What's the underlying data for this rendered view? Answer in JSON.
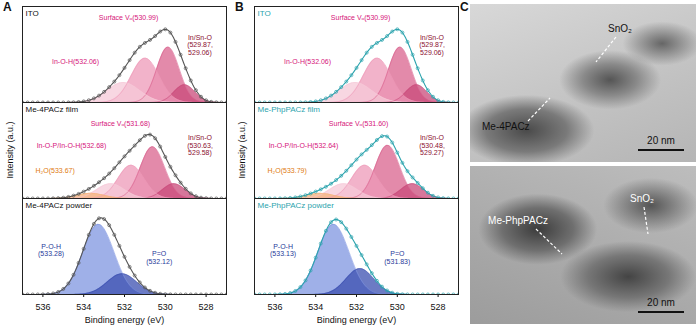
{
  "chart_data": [
    {
      "type": "area",
      "panel": "A",
      "x_label": "Binding energy (eV)",
      "y_label": "Intensity (a.u.)",
      "xlim": [
        537,
        527
      ],
      "xticks": [
        536,
        534,
        532,
        530,
        528
      ],
      "ylim": [
        0,
        1.3
      ],
      "tick_labels": "x",
      "spectra": [
        {
          "name": "ITO",
          "color": "#555555",
          "marker": "circle",
          "peaks": [
            {
              "center": 529.87,
              "height": 0.75,
              "fwhm": 1.3,
              "color": "#d9638e"
            },
            {
              "center": 529.06,
              "height": 0.24,
              "fwhm": 1.2,
              "color": "#c94a7a"
            },
            {
              "center": 530.99,
              "height": 0.6,
              "fwhm": 1.6,
              "color": "#ee9ab8"
            },
            {
              "center": 532.06,
              "height": 0.27,
              "fwhm": 1.9,
              "color": "#f6c9d8"
            }
          ],
          "annotations": [
            {
              "text": "Surface Vₒ(530.99)",
              "x": 531.8,
              "y": 1.15,
              "color": "#d6157a"
            },
            {
              "text": "In-O-H(532.06)",
              "x": 534.4,
              "y": 0.55,
              "color": "#d6157a"
            },
            {
              "text": "In/Sn-O\n(529.87,\n529.06)",
              "x": 528.3,
              "y": 0.78,
              "color": "#8b1030"
            }
          ]
        },
        {
          "name": "Me-4PACz film",
          "color": "#555555",
          "marker": "circle",
          "peaks": [
            {
              "center": 530.63,
              "height": 0.7,
              "fwhm": 1.4,
              "color": "#d9638e"
            },
            {
              "center": 529.58,
              "height": 0.2,
              "fwhm": 1.3,
              "color": "#c94a7a"
            },
            {
              "center": 531.68,
              "height": 0.45,
              "fwhm": 1.5,
              "color": "#ee9ab8"
            },
            {
              "center": 532.68,
              "height": 0.2,
              "fwhm": 1.6,
              "color": "#f6c9d8"
            },
            {
              "center": 533.67,
              "height": 0.07,
              "fwhm": 1.6,
              "color": "#f5b27a"
            }
          ],
          "annotations": [
            {
              "text": "Surface Vₒ(531.68)",
              "x": 532.2,
              "y": 1.02,
              "color": "#d6157a"
            },
            {
              "text": "In-O-P/In-O-H(532.68)",
              "x": 534.6,
              "y": 0.72,
              "color": "#d6157a"
            },
            {
              "text": "H₂O(533.67)",
              "x": 535.4,
              "y": 0.38,
              "color": "#e07a10"
            },
            {
              "text": "In/Sn-O\n(530.63,\n529.58)",
              "x": 528.3,
              "y": 0.72,
              "color": "#8b1030"
            }
          ]
        },
        {
          "name": "Me-4PACz powder",
          "color": "#555555",
          "marker": "circle",
          "peaks": [
            {
              "center": 533.28,
              "height": 0.95,
              "fwhm": 1.8,
              "color": "#7f95e0"
            },
            {
              "center": 532.12,
              "height": 0.28,
              "fwhm": 1.7,
              "color": "#3b4fb0"
            }
          ],
          "annotations": [
            {
              "text": "P-O-H\n(533.28)",
              "x": 535.6,
              "y": 0.6,
              "color": "#1f3a9a"
            },
            {
              "text": "P=O\n(532.12)",
              "x": 530.3,
              "y": 0.5,
              "color": "#1f3a9a"
            }
          ]
        }
      ]
    },
    {
      "type": "area",
      "panel": "B",
      "x_label": "Binding energy (eV)",
      "y_label": "Intensity (a.u.)",
      "xlim": [
        537,
        527
      ],
      "xticks": [
        536,
        534,
        532,
        530,
        528
      ],
      "ylim": [
        0,
        1.3
      ],
      "tick_labels": "x",
      "spectra": [
        {
          "name": "ITO",
          "color": "#2ba3ad",
          "marker": "circle",
          "peaks": [
            {
              "center": 529.87,
              "height": 0.75,
              "fwhm": 1.3,
              "color": "#d9638e"
            },
            {
              "center": 529.06,
              "height": 0.24,
              "fwhm": 1.2,
              "color": "#c94a7a"
            },
            {
              "center": 530.99,
              "height": 0.6,
              "fwhm": 1.6,
              "color": "#ee9ab8"
            },
            {
              "center": 532.06,
              "height": 0.27,
              "fwhm": 1.9,
              "color": "#f6c9d8"
            }
          ],
          "annotations": [
            {
              "text": "Surface Vₒ(530.99)",
              "x": 531.8,
              "y": 1.15,
              "color": "#d6157a"
            },
            {
              "text": "In-O-H(532.06)",
              "x": 534.4,
              "y": 0.55,
              "color": "#d6157a"
            },
            {
              "text": "In/Sn-O\n(529.87,\n529.06)",
              "x": 528.3,
              "y": 0.78,
              "color": "#8b1030"
            }
          ]
        },
        {
          "name": "Me-PhpPACz film",
          "color": "#2ba3ad",
          "marker": "circle",
          "peaks": [
            {
              "center": 530.48,
              "height": 0.72,
              "fwhm": 1.4,
              "color": "#d9638e"
            },
            {
              "center": 529.27,
              "height": 0.2,
              "fwhm": 1.3,
              "color": "#c94a7a"
            },
            {
              "center": 531.6,
              "height": 0.45,
              "fwhm": 1.5,
              "color": "#ee9ab8"
            },
            {
              "center": 532.64,
              "height": 0.2,
              "fwhm": 1.6,
              "color": "#f6c9d8"
            },
            {
              "center": 533.79,
              "height": 0.07,
              "fwhm": 1.6,
              "color": "#f5b27a"
            }
          ],
          "annotations": [
            {
              "text": "Surface Vₒ(531.60)",
              "x": 531.9,
              "y": 1.02,
              "color": "#d6157a"
            },
            {
              "text": "In-O-P/In-O-H(532.64)",
              "x": 534.6,
              "y": 0.72,
              "color": "#d6157a"
            },
            {
              "text": "H₂O(533.79)",
              "x": 535.4,
              "y": 0.38,
              "color": "#e07a10"
            },
            {
              "text": "In/Sn-O\n(530.48,\n529.27)",
              "x": 528.3,
              "y": 0.72,
              "color": "#8b1030"
            }
          ]
        },
        {
          "name": "Me-PhpPACz powder",
          "color": "#2ba3ad",
          "marker": "circle",
          "peaks": [
            {
              "center": 533.13,
              "height": 0.95,
              "fwhm": 1.8,
              "color": "#7f95e0"
            },
            {
              "center": 531.83,
              "height": 0.35,
              "fwhm": 1.6,
              "color": "#3b4fb0"
            }
          ],
          "annotations": [
            {
              "text": "P-O-H\n(533.13)",
              "x": 535.6,
              "y": 0.6,
              "color": "#1f3a9a"
            },
            {
              "text": "P=O\n(531.83)",
              "x": 530.0,
              "y": 0.5,
              "color": "#1f3a9a"
            }
          ]
        }
      ]
    }
  ],
  "images": {
    "panel": "C",
    "items": [
      {
        "labels": [
          "SnO₂",
          "Me-4PACz"
        ],
        "scale_bar": "20 nm"
      },
      {
        "labels": [
          "SnO₂",
          "Me-PhpPACz"
        ],
        "scale_bar": "20 nm"
      }
    ]
  }
}
